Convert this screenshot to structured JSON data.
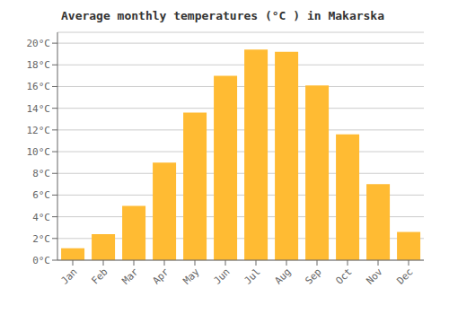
{
  "chart_data": {
    "type": "bar",
    "title": "Average monthly temperatures (°C ) in Makarska",
    "categories": [
      "Jan",
      "Feb",
      "Mar",
      "Apr",
      "May",
      "Jun",
      "Jul",
      "Aug",
      "Sep",
      "Oct",
      "Nov",
      "Dec"
    ],
    "values": [
      1.1,
      2.4,
      5.0,
      9.0,
      13.6,
      17.0,
      19.4,
      19.2,
      16.1,
      11.6,
      7.0,
      2.6
    ],
    "color": "#FFBB33",
    "ylim": [
      0,
      21
    ],
    "yticks": [
      {
        "value": 0,
        "label": "0°C"
      },
      {
        "value": 2,
        "label": "2°C"
      },
      {
        "value": 4,
        "label": "4°C"
      },
      {
        "value": 6,
        "label": "6°C"
      },
      {
        "value": 8,
        "label": "8°C"
      },
      {
        "value": 10,
        "label": "10°C"
      },
      {
        "value": 12,
        "label": "12°C"
      },
      {
        "value": 14,
        "label": "14°C"
      },
      {
        "value": 16,
        "label": "16°C"
      },
      {
        "value": 18,
        "label": "18°C"
      },
      {
        "value": 20,
        "label": "20°C"
      }
    ],
    "grid": true
  }
}
